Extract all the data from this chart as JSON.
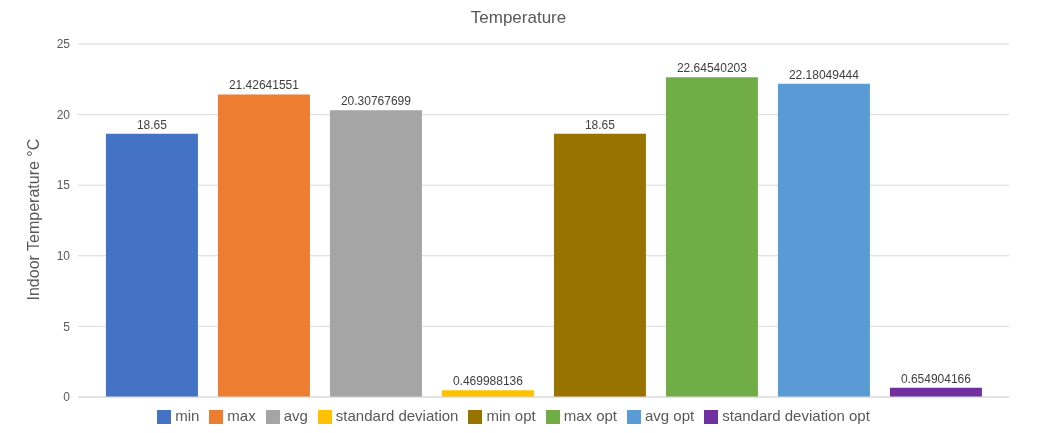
{
  "chart_data": {
    "type": "bar",
    "title": "Temperature",
    "ylabel": "Indoor Temperature °C",
    "categories": [
      null
    ],
    "series": [
      {
        "name": "min",
        "color": "#4472c4",
        "values": [
          18.65
        ]
      },
      {
        "name": "max",
        "color": "#ed7d31",
        "values": [
          21.42641551
        ]
      },
      {
        "name": "avg",
        "color": "#a5a5a5",
        "values": [
          20.30767699
        ]
      },
      {
        "name": "standard deviation",
        "color": "#ffc000",
        "values": [
          0.469988136
        ]
      },
      {
        "name": "min opt",
        "color": "#997300",
        "values": [
          18.65
        ]
      },
      {
        "name": "max opt",
        "color": "#70ad47",
        "values": [
          22.64540203
        ]
      },
      {
        "name": "avg opt",
        "color": "#5b9bd5",
        "values": [
          22.18049444
        ]
      },
      {
        "name": "standard deviation opt",
        "color": "#7030a0",
        "values": [
          0.654904166
        ]
      }
    ],
    "ylim": [
      0,
      25
    ],
    "yticks": [
      0,
      5,
      10,
      15,
      20,
      25
    ],
    "grid": "y",
    "legend": "bottom",
    "data_labels": true
  }
}
